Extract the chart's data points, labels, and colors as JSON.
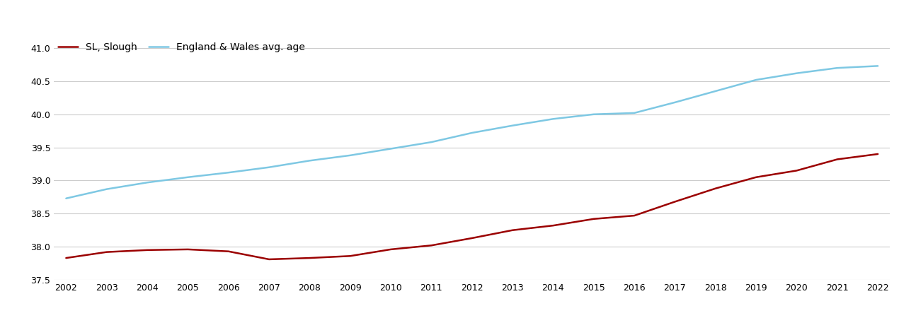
{
  "years": [
    2002,
    2003,
    2004,
    2005,
    2006,
    2007,
    2008,
    2009,
    2010,
    2011,
    2012,
    2013,
    2014,
    2015,
    2016,
    2017,
    2018,
    2019,
    2020,
    2021,
    2022
  ],
  "slough": [
    37.83,
    37.92,
    37.95,
    37.96,
    37.93,
    37.81,
    37.83,
    37.86,
    37.96,
    38.02,
    38.13,
    38.25,
    38.32,
    38.42,
    38.47,
    38.68,
    38.88,
    39.05,
    39.15,
    39.32,
    39.4
  ],
  "england_wales": [
    38.73,
    38.87,
    38.97,
    39.05,
    39.12,
    39.2,
    39.3,
    39.38,
    39.48,
    39.58,
    39.72,
    39.83,
    39.93,
    40.0,
    40.02,
    40.18,
    40.35,
    40.52,
    40.62,
    40.7,
    40.73
  ],
  "slough_color": "#9b0000",
  "ew_color": "#7ec8e3",
  "slough_label": "SL, Slough",
  "ew_label": "England & Wales avg. age",
  "ylim": [
    37.5,
    41.15
  ],
  "yticks": [
    37.5,
    38.0,
    38.5,
    39.0,
    39.5,
    40.0,
    40.5,
    41.0
  ],
  "background_color": "#ffffff",
  "grid_color": "#cccccc",
  "line_width": 1.8,
  "figsize": [
    12.7,
    4.5
  ],
  "dpi": 100
}
